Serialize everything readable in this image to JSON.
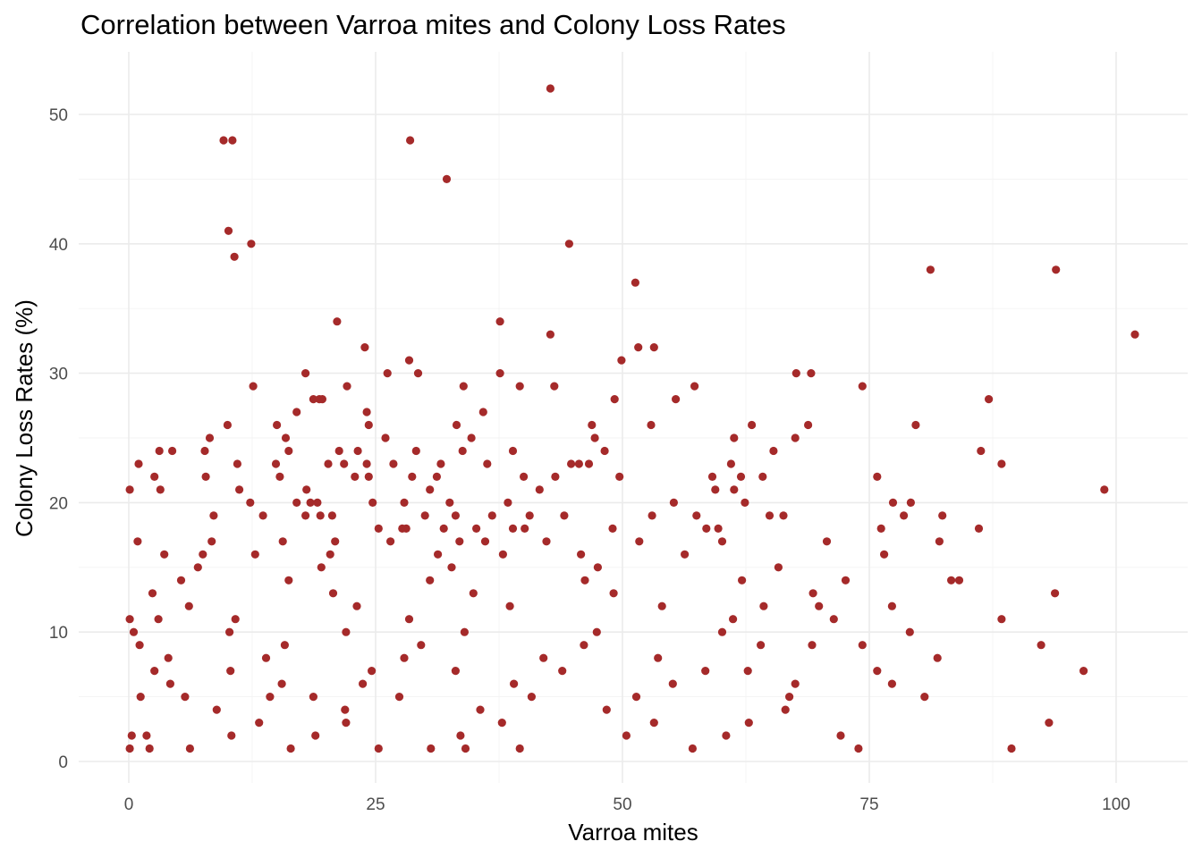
{
  "chart_data": {
    "type": "scatter",
    "title": "Correlation between Varroa mites and Colony Loss Rates",
    "xlabel": "Varroa mites",
    "ylabel": "Colony Loss Rates (%)",
    "xlim": [
      -5,
      107
    ],
    "ylim": [
      -2,
      55
    ],
    "x_ticks": [
      0,
      25,
      50,
      75,
      100
    ],
    "y_ticks": [
      0,
      10,
      20,
      30,
      40,
      50
    ],
    "x_tick_labels": [
      "0",
      "25",
      "50",
      "75",
      "100"
    ],
    "y_tick_labels": [
      "0",
      "10",
      "20",
      "30",
      "40",
      "50"
    ],
    "grid": true,
    "point_color": "#a52a2a",
    "series": [
      {
        "points": [
          [
            42.7,
            52
          ],
          [
            9.6,
            48
          ],
          [
            10.5,
            48
          ],
          [
            28.5,
            48
          ],
          [
            32.2,
            45
          ],
          [
            10.1,
            41
          ],
          [
            12.4,
            40
          ],
          [
            44.6,
            40
          ],
          [
            10.7,
            39
          ],
          [
            81.2,
            38
          ],
          [
            93.9,
            38
          ],
          [
            51.3,
            37
          ],
          [
            101.9,
            33
          ],
          [
            42.7,
            33
          ],
          [
            21.1,
            34
          ],
          [
            37.6,
            34
          ],
          [
            23.9,
            32
          ],
          [
            51.6,
            32
          ],
          [
            53.2,
            32
          ],
          [
            28.4,
            31
          ],
          [
            49.9,
            31
          ],
          [
            26.2,
            30
          ],
          [
            29.3,
            30
          ],
          [
            17.9,
            30
          ],
          [
            37.6,
            30
          ],
          [
            67.6,
            30
          ],
          [
            69.1,
            30
          ],
          [
            12.6,
            29
          ],
          [
            22.1,
            29
          ],
          [
            33.9,
            29
          ],
          [
            39.6,
            29
          ],
          [
            43.1,
            29
          ],
          [
            57.3,
            29
          ],
          [
            74.3,
            29
          ],
          [
            18.7,
            28
          ],
          [
            19.3,
            28
          ],
          [
            19.6,
            28
          ],
          [
            49.2,
            28
          ],
          [
            55.4,
            28
          ],
          [
            87.1,
            28
          ],
          [
            17.0,
            27
          ],
          [
            24.1,
            27
          ],
          [
            35.9,
            27
          ],
          [
            10.0,
            26
          ],
          [
            15.0,
            26
          ],
          [
            24.3,
            26
          ],
          [
            33.2,
            26
          ],
          [
            46.9,
            26
          ],
          [
            52.9,
            26
          ],
          [
            63.1,
            26
          ],
          [
            68.8,
            26
          ],
          [
            79.7,
            26
          ],
          [
            8.2,
            25
          ],
          [
            15.9,
            25
          ],
          [
            26.0,
            25
          ],
          [
            34.7,
            25
          ],
          [
            47.2,
            25
          ],
          [
            61.3,
            25
          ],
          [
            67.5,
            25
          ],
          [
            3.1,
            24
          ],
          [
            4.4,
            24
          ],
          [
            7.7,
            24
          ],
          [
            16.2,
            24
          ],
          [
            21.3,
            24
          ],
          [
            23.2,
            24
          ],
          [
            29.1,
            24
          ],
          [
            33.8,
            24
          ],
          [
            38.9,
            24
          ],
          [
            48.2,
            24
          ],
          [
            65.3,
            24
          ],
          [
            86.3,
            24
          ],
          [
            1.0,
            23
          ],
          [
            11.0,
            23
          ],
          [
            14.9,
            23
          ],
          [
            20.2,
            23
          ],
          [
            21.8,
            23
          ],
          [
            24.1,
            23
          ],
          [
            26.8,
            23
          ],
          [
            31.6,
            23
          ],
          [
            36.3,
            23
          ],
          [
            44.8,
            23
          ],
          [
            45.6,
            23
          ],
          [
            46.6,
            23
          ],
          [
            61.0,
            23
          ],
          [
            88.4,
            23
          ],
          [
            2.6,
            22
          ],
          [
            7.8,
            22
          ],
          [
            15.3,
            22
          ],
          [
            22.9,
            22
          ],
          [
            24.3,
            22
          ],
          [
            28.7,
            22
          ],
          [
            31.2,
            22
          ],
          [
            40.0,
            22
          ],
          [
            43.2,
            22
          ],
          [
            49.7,
            22
          ],
          [
            59.1,
            22
          ],
          [
            62.0,
            22
          ],
          [
            64.2,
            22
          ],
          [
            75.8,
            22
          ],
          [
            3.2,
            21
          ],
          [
            11.2,
            21
          ],
          [
            18.0,
            21
          ],
          [
            30.5,
            21
          ],
          [
            41.6,
            21
          ],
          [
            59.4,
            21
          ],
          [
            61.3,
            21
          ],
          [
            98.8,
            21
          ],
          [
            0.1,
            21
          ],
          [
            12.3,
            20
          ],
          [
            17.0,
            20
          ],
          [
            18.4,
            20
          ],
          [
            19.1,
            20
          ],
          [
            24.7,
            20
          ],
          [
            27.9,
            20
          ],
          [
            32.5,
            20
          ],
          [
            38.4,
            20
          ],
          [
            55.2,
            20
          ],
          [
            62.4,
            20
          ],
          [
            77.4,
            20
          ],
          [
            79.2,
            20
          ],
          [
            8.6,
            19
          ],
          [
            13.6,
            19
          ],
          [
            17.9,
            19
          ],
          [
            19.4,
            19
          ],
          [
            20.6,
            19
          ],
          [
            30.0,
            19
          ],
          [
            33.1,
            19
          ],
          [
            36.8,
            19
          ],
          [
            40.6,
            19
          ],
          [
            44.1,
            19
          ],
          [
            53.0,
            19
          ],
          [
            57.5,
            19
          ],
          [
            64.9,
            19
          ],
          [
            66.3,
            19
          ],
          [
            78.5,
            19
          ],
          [
            82.4,
            19
          ],
          [
            25.3,
            18
          ],
          [
            27.7,
            18
          ],
          [
            28.1,
            18
          ],
          [
            31.9,
            18
          ],
          [
            35.2,
            18
          ],
          [
            38.9,
            18
          ],
          [
            40.1,
            18
          ],
          [
            49.0,
            18
          ],
          [
            58.5,
            18
          ],
          [
            59.7,
            18
          ],
          [
            76.2,
            18
          ],
          [
            86.1,
            18
          ],
          [
            0.9,
            17
          ],
          [
            8.4,
            17
          ],
          [
            15.6,
            17
          ],
          [
            20.9,
            17
          ],
          [
            26.5,
            17
          ],
          [
            33.5,
            17
          ],
          [
            36.1,
            17
          ],
          [
            42.3,
            17
          ],
          [
            51.7,
            17
          ],
          [
            60.1,
            17
          ],
          [
            70.7,
            17
          ],
          [
            82.1,
            17
          ],
          [
            3.6,
            16
          ],
          [
            7.5,
            16
          ],
          [
            12.8,
            16
          ],
          [
            20.4,
            16
          ],
          [
            31.3,
            16
          ],
          [
            37.9,
            16
          ],
          [
            45.8,
            16
          ],
          [
            56.3,
            16
          ],
          [
            76.5,
            16
          ],
          [
            2.4,
            13
          ],
          [
            20.7,
            13
          ],
          [
            34.9,
            13
          ],
          [
            49.1,
            13
          ],
          [
            69.3,
            13
          ],
          [
            93.8,
            13
          ],
          [
            0.1,
            11
          ],
          [
            3.0,
            11
          ],
          [
            10.8,
            11
          ],
          [
            28.4,
            11
          ],
          [
            61.2,
            11
          ],
          [
            88.4,
            11
          ],
          [
            71.4,
            11
          ],
          [
            5.3,
            14
          ],
          [
            16.2,
            14
          ],
          [
            30.5,
            14
          ],
          [
            46.2,
            14
          ],
          [
            62.1,
            14
          ],
          [
            72.6,
            14
          ],
          [
            84.1,
            14
          ],
          [
            83.3,
            14
          ],
          [
            6.1,
            12
          ],
          [
            23.1,
            12
          ],
          [
            38.6,
            12
          ],
          [
            54.0,
            12
          ],
          [
            64.3,
            12
          ],
          [
            69.9,
            12
          ],
          [
            77.3,
            12
          ],
          [
            0.5,
            10
          ],
          [
            10.2,
            10
          ],
          [
            22.0,
            10
          ],
          [
            34.0,
            10
          ],
          [
            47.4,
            10
          ],
          [
            60.1,
            10
          ],
          [
            79.1,
            10
          ],
          [
            0.3,
            2
          ],
          [
            1.8,
            2
          ],
          [
            10.4,
            2
          ],
          [
            18.9,
            2
          ],
          [
            33.6,
            2
          ],
          [
            50.4,
            2
          ],
          [
            60.5,
            2
          ],
          [
            72.1,
            2
          ],
          [
            13.2,
            3
          ],
          [
            22.0,
            3
          ],
          [
            37.8,
            3
          ],
          [
            53.2,
            3
          ],
          [
            62.8,
            3
          ],
          [
            93.2,
            3
          ],
          [
            0.1,
            1
          ],
          [
            2.1,
            1
          ],
          [
            6.2,
            1
          ],
          [
            16.4,
            1
          ],
          [
            25.3,
            1
          ],
          [
            30.6,
            1
          ],
          [
            34.1,
            1
          ],
          [
            39.6,
            1
          ],
          [
            57.1,
            1
          ],
          [
            73.9,
            1
          ],
          [
            89.4,
            1
          ],
          [
            1.2,
            5
          ],
          [
            5.7,
            5
          ],
          [
            14.3,
            5
          ],
          [
            18.7,
            5
          ],
          [
            27.4,
            5
          ],
          [
            40.8,
            5
          ],
          [
            51.4,
            5
          ],
          [
            66.9,
            5
          ],
          [
            80.6,
            5
          ],
          [
            4.2,
            6
          ],
          [
            15.5,
            6
          ],
          [
            23.7,
            6
          ],
          [
            39.0,
            6
          ],
          [
            55.1,
            6
          ],
          [
            67.5,
            6
          ],
          [
            77.3,
            6
          ],
          [
            2.6,
            7
          ],
          [
            10.3,
            7
          ],
          [
            24.6,
            7
          ],
          [
            33.1,
            7
          ],
          [
            43.9,
            7
          ],
          [
            58.4,
            7
          ],
          [
            62.7,
            7
          ],
          [
            75.8,
            7
          ],
          [
            96.7,
            7
          ],
          [
            4.0,
            8
          ],
          [
            13.9,
            8
          ],
          [
            27.9,
            8
          ],
          [
            42.0,
            8
          ],
          [
            53.6,
            8
          ],
          [
            81.9,
            8
          ],
          [
            1.1,
            9
          ],
          [
            15.8,
            9
          ],
          [
            29.6,
            9
          ],
          [
            46.1,
            9
          ],
          [
            64.0,
            9
          ],
          [
            69.2,
            9
          ],
          [
            74.3,
            9
          ],
          [
            92.4,
            9
          ],
          [
            8.9,
            4
          ],
          [
            21.9,
            4
          ],
          [
            35.6,
            4
          ],
          [
            48.4,
            4
          ],
          [
            66.5,
            4
          ],
          [
            7.0,
            15
          ],
          [
            19.5,
            15
          ],
          [
            32.7,
            15
          ],
          [
            47.5,
            15
          ],
          [
            65.8,
            15
          ]
        ]
      }
    ]
  }
}
